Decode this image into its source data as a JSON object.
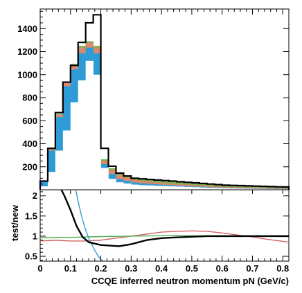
{
  "chart_data": [
    {
      "type": "histogram",
      "panel": "top",
      "xlabel": "",
      "ylabel": "",
      "xlim": [
        0,
        0.82
      ],
      "ylim": [
        0,
        1570
      ],
      "y_ticks": [
        200,
        400,
        600,
        800,
        1000,
        1200,
        1400
      ],
      "bin_edges": [
        0,
        0.025,
        0.05,
        0.075,
        0.1,
        0.125,
        0.15,
        0.175,
        0.2,
        0.225,
        0.25,
        0.275,
        0.3,
        0.325,
        0.35,
        0.375,
        0.4,
        0.425,
        0.45,
        0.475,
        0.5,
        0.525,
        0.55,
        0.575,
        0.6,
        0.625,
        0.65,
        0.675,
        0.7,
        0.725,
        0.75,
        0.775,
        0.8,
        0.82
      ],
      "series": [
        {
          "style": "outline",
          "color": "#000000",
          "values": [
            75,
            360,
            670,
            935,
            1080,
            1280,
            1450,
            1520,
            360,
            205,
            145,
            120,
            100,
            95,
            90,
            85,
            80,
            75,
            70,
            65,
            60,
            55,
            50,
            45,
            40,
            38,
            36,
            34,
            32,
            30,
            28,
            26,
            25
          ]
        },
        {
          "style": "stacked-fill",
          "layers": [
            {
              "color": "#ffffff",
              "values": [
                30,
                155,
                340,
                515,
                760,
                950,
                1120,
                1000,
                190,
                95,
                65,
                55,
                45,
                40,
                38,
                35,
                33,
                30,
                28,
                25,
                23,
                20,
                18,
                16,
                14,
                12,
                11,
                10,
                9,
                8,
                7,
                6,
                5
              ]
            },
            {
              "color": "#2e9bd6",
              "values": [
                40,
                185,
                290,
                385,
                285,
                235,
                115,
                185,
                32,
                42,
                27,
                22,
                18,
                16,
                14,
                12,
                10,
                9,
                8,
                7,
                6,
                6,
                5,
                5,
                4,
                4,
                4,
                4,
                3,
                3,
                3,
                3,
                3
              ]
            },
            {
              "color": "#d98a6c",
              "values": [
                3,
                10,
                20,
                30,
                40,
                50,
                40,
                45,
                28,
                35,
                35,
                30,
                22,
                20,
                18,
                16,
                15,
                14,
                13,
                12,
                11,
                10,
                9,
                8,
                7,
                7,
                6,
                6,
                5,
                5,
                5,
                4,
                4
              ]
            },
            {
              "color": "#8faa50",
              "values": [
                1,
                4,
                5,
                5,
                5,
                10,
                10,
                15,
                10,
                10,
                10,
                10,
                10,
                10,
                10,
                10,
                10,
                10,
                10,
                10,
                10,
                10,
                10,
                10,
                10,
                10,
                10,
                8,
                8,
                8,
                8,
                8,
                8
              ]
            },
            {
              "color": "#60c060",
              "values": [
                1,
                1,
                2,
                2,
                3,
                5,
                5,
                5,
                5,
                6,
                6,
                6,
                6,
                6,
                6,
                6,
                6,
                6,
                6,
                6,
                5,
                5,
                5,
                5,
                5,
                5,
                5,
                5,
                5,
                5,
                5,
                5,
                5
              ]
            }
          ]
        }
      ]
    },
    {
      "type": "line",
      "panel": "bottom",
      "xlabel": "CCQE inferred neutron momentum pN (GeV/c)",
      "ylabel": "test/new",
      "xlim": [
        0,
        0.82
      ],
      "ylim": [
        0.38,
        2.15
      ],
      "x_ticks": [
        0,
        0.1,
        0.2,
        0.3,
        0.4,
        0.5,
        0.6,
        0.7,
        0.8
      ],
      "x_tick_labels": [
        "0",
        "0.1",
        "0.2",
        "0.3",
        "0.4",
        "0.5",
        "0.6",
        "0.7",
        "0.8"
      ],
      "y_ticks": [
        0.5,
        1,
        1.5,
        2
      ],
      "y_tick_labels": [
        "0.5",
        "1",
        "1.5",
        "2"
      ],
      "series": [
        {
          "color": "#000000",
          "x": [
            0.07,
            0.08,
            0.1,
            0.12,
            0.14,
            0.16,
            0.2,
            0.26,
            0.3,
            0.35,
            0.4,
            0.45,
            0.55,
            0.65,
            0.75,
            0.82
          ],
          "y": [
            2.15,
            2.0,
            1.65,
            1.25,
            0.98,
            0.85,
            0.78,
            0.75,
            0.8,
            0.9,
            0.95,
            0.97,
            1.0,
            1.0,
            1.0,
            1.0
          ]
        },
        {
          "color": "#3a9bd0",
          "x": [
            0.117,
            0.12,
            0.13,
            0.14,
            0.15,
            0.16,
            0.17,
            0.18,
            0.19,
            0.2,
            0.21
          ],
          "y": [
            2.15,
            2.05,
            1.7,
            1.4,
            1.15,
            0.95,
            0.8,
            0.65,
            0.52,
            0.42,
            0.38
          ]
        },
        {
          "color": "#d06060",
          "x": [
            0,
            0.05,
            0.1,
            0.15,
            0.2,
            0.25,
            0.3,
            0.35,
            0.4,
            0.45,
            0.5,
            0.55,
            0.6,
            0.65,
            0.7,
            0.75,
            0.8,
            0.82
          ],
          "y": [
            0.88,
            0.9,
            0.88,
            0.88,
            0.9,
            0.95,
            1.0,
            1.05,
            1.1,
            1.12,
            1.13,
            1.12,
            1.08,
            1.03,
            0.98,
            0.92,
            0.87,
            0.85
          ]
        },
        {
          "color": "#50b050",
          "x": [
            0,
            0.05,
            0.1,
            0.15,
            0.2,
            0.3,
            0.4,
            0.5,
            0.6,
            0.7,
            0.8,
            0.82
          ],
          "y": [
            0.96,
            0.97,
            0.97,
            0.98,
            0.99,
            1.0,
            1.01,
            1.01,
            1.01,
            1.01,
            1.01,
            1.01
          ]
        }
      ]
    }
  ]
}
